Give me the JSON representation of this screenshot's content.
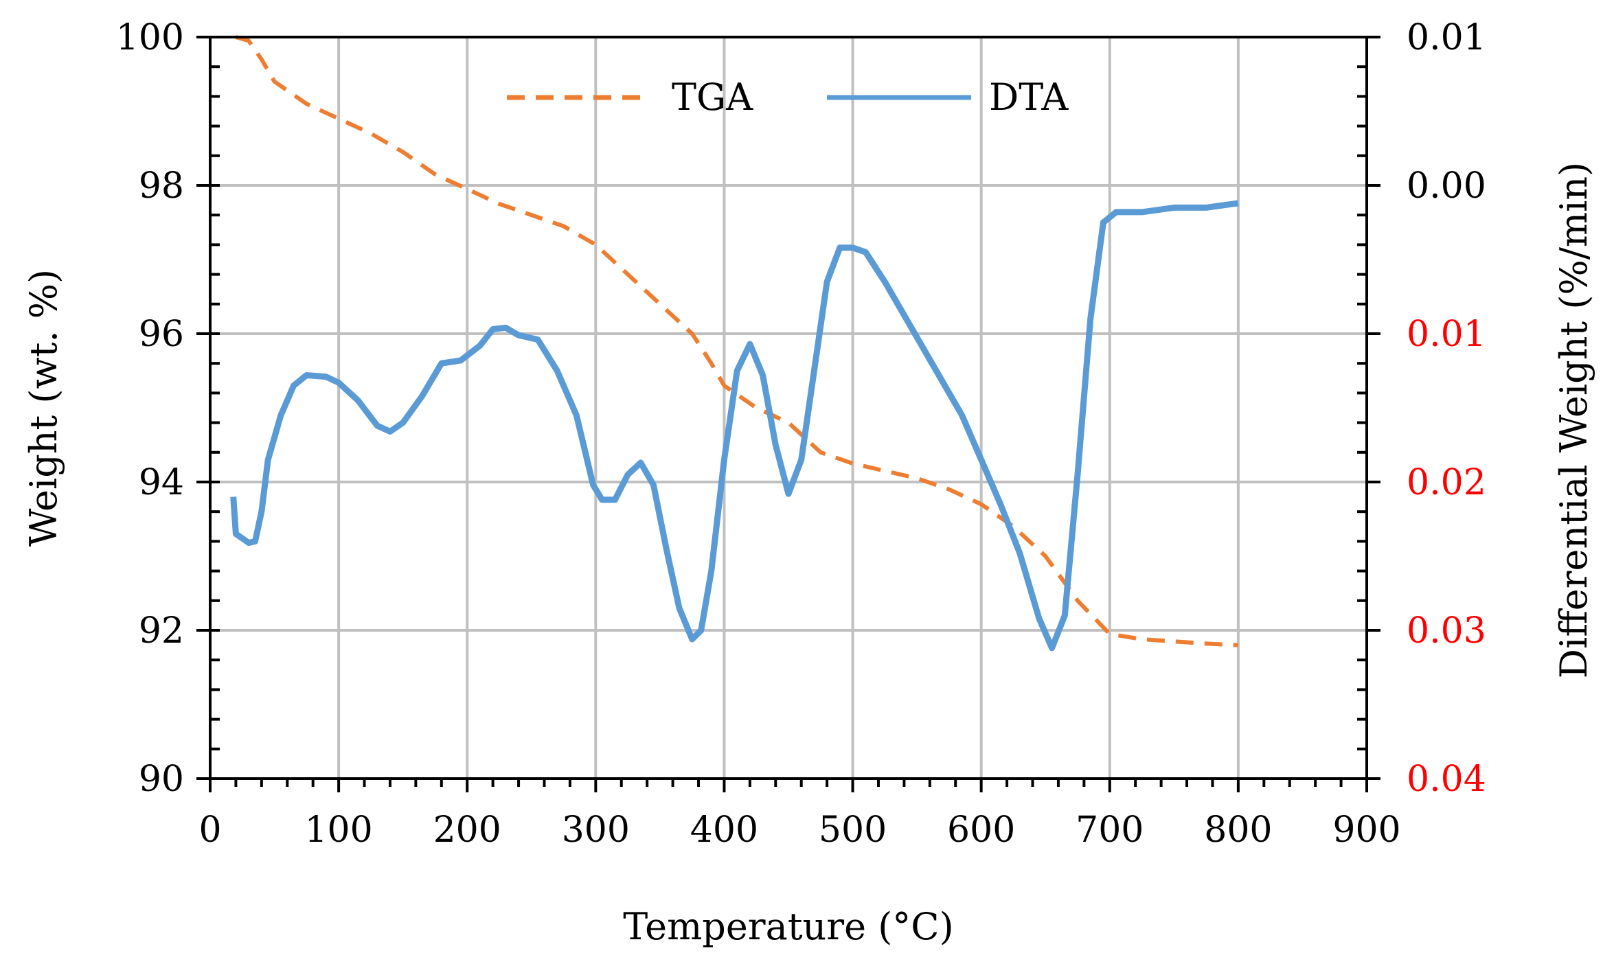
{
  "chart_data": {
    "type": "line",
    "title": "",
    "xlabel": "Temperature (°C)",
    "ylabel_left": "Weight (wt. %)",
    "ylabel_right": "Differential Weight (%/min)",
    "xlim": [
      0,
      900
    ],
    "ylim_left": [
      90,
      100
    ],
    "ylim_right": [
      0.01,
      -0.04
    ],
    "grid": true,
    "legend_position": "top-center",
    "x_ticks": [
      "0",
      "100",
      "200",
      "300",
      "400",
      "500",
      "600",
      "700",
      "800",
      "900"
    ],
    "y_left_ticks": [
      "90",
      "92",
      "94",
      "96",
      "98",
      "100"
    ],
    "y_right_ticks": [
      {
        "label": "0.04",
        "color": "#ff0000"
      },
      {
        "label": "0.03",
        "color": "#ff0000"
      },
      {
        "label": "0.02",
        "color": "#ff0000"
      },
      {
        "label": "0.01",
        "color": "#ff0000"
      },
      {
        "label": "0.00",
        "color": "#000000"
      },
      {
        "label": "0.01",
        "color": "#000000"
      }
    ],
    "series": [
      {
        "name": "TGA",
        "axis": "left",
        "color": "#ed7d31",
        "style": "dashed",
        "points": [
          [
            20,
            100.0
          ],
          [
            30,
            99.95
          ],
          [
            40,
            99.7
          ],
          [
            50,
            99.4
          ],
          [
            75,
            99.1
          ],
          [
            100,
            98.9
          ],
          [
            125,
            98.7
          ],
          [
            150,
            98.45
          ],
          [
            175,
            98.15
          ],
          [
            200,
            97.95
          ],
          [
            225,
            97.75
          ],
          [
            250,
            97.6
          ],
          [
            275,
            97.45
          ],
          [
            300,
            97.2
          ],
          [
            325,
            96.8
          ],
          [
            350,
            96.4
          ],
          [
            375,
            96.0
          ],
          [
            390,
            95.6
          ],
          [
            400,
            95.3
          ],
          [
            425,
            95.0
          ],
          [
            450,
            94.8
          ],
          [
            475,
            94.4
          ],
          [
            500,
            94.25
          ],
          [
            525,
            94.15
          ],
          [
            550,
            94.05
          ],
          [
            575,
            93.9
          ],
          [
            600,
            93.7
          ],
          [
            625,
            93.4
          ],
          [
            650,
            93.0
          ],
          [
            675,
            92.4
          ],
          [
            700,
            91.95
          ],
          [
            725,
            91.88
          ],
          [
            750,
            91.85
          ],
          [
            775,
            91.82
          ],
          [
            800,
            91.8
          ]
        ]
      },
      {
        "name": "DTA",
        "axis": "right",
        "color": "#5b9bd5",
        "style": "solid",
        "points": [
          [
            18,
            -0.021
          ],
          [
            20,
            -0.0235
          ],
          [
            25,
            -0.0238
          ],
          [
            30,
            -0.0241
          ],
          [
            35,
            -0.024
          ],
          [
            40,
            -0.022
          ],
          [
            45,
            -0.0185
          ],
          [
            55,
            -0.0155
          ],
          [
            65,
            -0.0135
          ],
          [
            75,
            -0.0128
          ],
          [
            90,
            -0.0129
          ],
          [
            100,
            -0.0133
          ],
          [
            115,
            -0.0145
          ],
          [
            130,
            -0.0162
          ],
          [
            140,
            -0.0166
          ],
          [
            150,
            -0.016
          ],
          [
            165,
            -0.0142
          ],
          [
            180,
            -0.012
          ],
          [
            195,
            -0.0118
          ],
          [
            210,
            -0.0108
          ],
          [
            220,
            -0.0097
          ],
          [
            230,
            -0.0096
          ],
          [
            240,
            -0.0101
          ],
          [
            255,
            -0.0104
          ],
          [
            270,
            -0.0125
          ],
          [
            285,
            -0.0155
          ],
          [
            298,
            -0.0202
          ],
          [
            305,
            -0.0212
          ],
          [
            315,
            -0.0212
          ],
          [
            325,
            -0.0195
          ],
          [
            335,
            -0.0187
          ],
          [
            345,
            -0.0202
          ],
          [
            355,
            -0.0245
          ],
          [
            365,
            -0.0285
          ],
          [
            375,
            -0.0306
          ],
          [
            382,
            -0.03
          ],
          [
            390,
            -0.026
          ],
          [
            400,
            -0.0185
          ],
          [
            410,
            -0.0125
          ],
          [
            420,
            -0.0107
          ],
          [
            430,
            -0.0128
          ],
          [
            440,
            -0.0175
          ],
          [
            450,
            -0.0208
          ],
          [
            460,
            -0.0185
          ],
          [
            470,
            -0.0125
          ],
          [
            480,
            -0.0065
          ],
          [
            490,
            -0.0042
          ],
          [
            500,
            -0.0042
          ],
          [
            510,
            -0.0045
          ],
          [
            525,
            -0.0065
          ],
          [
            545,
            -0.0095
          ],
          [
            565,
            -0.0125
          ],
          [
            585,
            -0.0155
          ],
          [
            600,
            -0.0185
          ],
          [
            615,
            -0.0215
          ],
          [
            630,
            -0.0248
          ],
          [
            645,
            -0.0292
          ],
          [
            655,
            -0.0312
          ],
          [
            665,
            -0.029
          ],
          [
            675,
            -0.0195
          ],
          [
            685,
            -0.009
          ],
          [
            695,
            -0.0025
          ],
          [
            705,
            -0.0018
          ],
          [
            725,
            -0.0018
          ],
          [
            750,
            -0.0015
          ],
          [
            775,
            -0.0015
          ],
          [
            800,
            -0.0012
          ]
        ]
      }
    ]
  }
}
